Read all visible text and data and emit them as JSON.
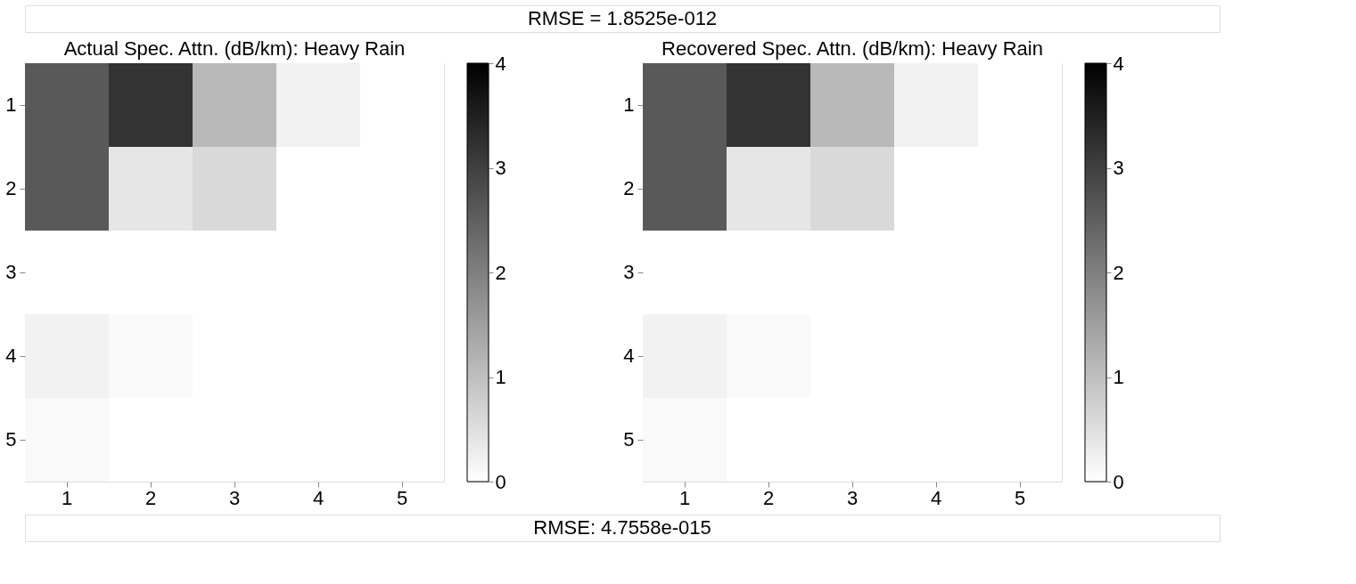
{
  "chart_data": [
    {
      "type": "heatmap",
      "title": "Actual Spec. Attn. (dB/km): Heavy Rain",
      "categories": [
        "1",
        "2",
        "3",
        "4",
        "5"
      ],
      "y_categories": [
        "1",
        "2",
        "3",
        "4",
        "5"
      ],
      "cells": [
        [
          2.6,
          3.2,
          1.1,
          0.2,
          0
        ],
        [
          2.6,
          0.4,
          0.6,
          0,
          0
        ],
        [
          0,
          0,
          0,
          0,
          0
        ],
        [
          0.2,
          0.1,
          0,
          0,
          0
        ],
        [
          0.1,
          0,
          0,
          0,
          0
        ]
      ],
      "clim": [
        0,
        4
      ],
      "cticks": [
        0,
        1,
        2,
        3,
        4
      ],
      "annotations": [
        "RMSE = 1.8525e-012"
      ]
    },
    {
      "type": "heatmap",
      "title": "Recovered Spec. Attn. (dB/km): Heavy Rain",
      "categories": [
        "1",
        "2",
        "3",
        "4",
        "5"
      ],
      "y_categories": [
        "1",
        "2",
        "3",
        "4",
        "5"
      ],
      "cells": [
        [
          2.6,
          3.2,
          1.1,
          0.2,
          0
        ],
        [
          2.6,
          0.4,
          0.6,
          0,
          0
        ],
        [
          0,
          0,
          0,
          0,
          0
        ],
        [
          0.2,
          0.1,
          0,
          0,
          0
        ],
        [
          0.1,
          0,
          0,
          0,
          0
        ]
      ],
      "clim": [
        0,
        4
      ],
      "cticks": [
        0,
        1,
        2,
        3,
        4
      ],
      "annotations": [
        "RMSE: 4.7558e-015"
      ]
    }
  ]
}
